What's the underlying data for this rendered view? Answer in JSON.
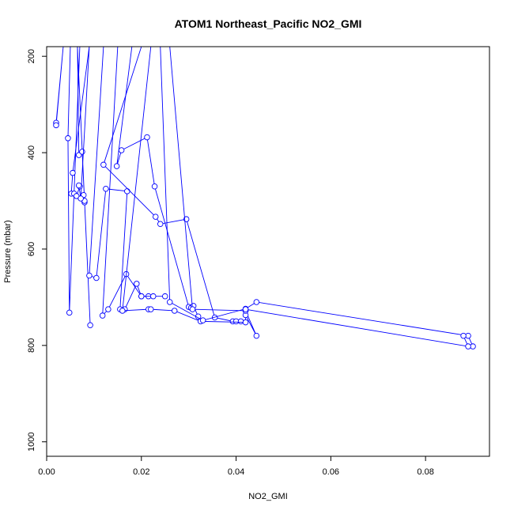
{
  "chart_data": {
    "type": "line",
    "title": "ATOM1 Northeast_Pacific NO2_GMI",
    "xlabel": "NO2_GMI",
    "ylabel": "Pressure (mbar)",
    "xlim": [
      0.0,
      0.0935
    ],
    "ylim": [
      1030,
      180
    ],
    "x_ticks": [
      0.0,
      0.02,
      0.04,
      0.06,
      0.08
    ],
    "x_tick_labels": [
      "0.00",
      "0.02",
      "0.04",
      "0.06",
      "0.08"
    ],
    "y_ticks": [
      200,
      400,
      600,
      800,
      1000
    ],
    "y_tick_labels": [
      "200",
      "400",
      "600",
      "800",
      "1000"
    ],
    "grid": false,
    "legend": "none",
    "series_color": "#0000ff",
    "series": [
      {
        "x": [
          0.0035,
          0.002,
          0.002,
          0.0035
        ],
        "y": [
          180,
          338,
          343,
          180
        ]
      },
      {
        "x": [
          0.005,
          0.0045,
          0.0048,
          0.007
        ],
        "y": [
          180,
          370,
          732,
          180
        ]
      },
      {
        "x": [
          0.0065,
          0.0068,
          0.0075,
          0.008,
          0.0078,
          0.008,
          0.0092,
          0.0065
        ],
        "y": [
          180,
          405,
          398,
          503,
          488,
          500,
          758,
          180
        ]
      },
      {
        "x": [
          0.009,
          0.0055,
          0.0052,
          0.0058,
          0.0063,
          0.007,
          0.0068,
          0.0072,
          0.009
        ],
        "y": [
          180,
          442,
          485,
          485,
          490,
          470,
          468,
          495,
          180
        ]
      },
      {
        "x": [
          0.012,
          0.009,
          0.0105,
          0.0125,
          0.017,
          0.0155,
          0.0165,
          0.019,
          0.02,
          0.0215
        ],
        "y": [
          180,
          655,
          660,
          475,
          480,
          725,
          725,
          672,
          698,
          698
        ]
      },
      {
        "x": [
          0.015,
          0.0118,
          0.013,
          0.0168,
          0.02,
          0.0225,
          0.025
        ],
        "y": [
          180,
          738,
          725,
          652,
          698,
          698,
          698
        ]
      },
      {
        "x": [
          0.018,
          0.0148,
          0.0158,
          0.0212,
          0.0228,
          0.03,
          0.0305,
          0.031,
          0.032
        ],
        "y": [
          180,
          428,
          395,
          368,
          470,
          720,
          722,
          718,
          740
        ]
      },
      {
        "x": [
          0.02,
          0.012,
          0.023,
          0.024,
          0.0295,
          0.0355,
          0.0393,
          0.04,
          0.041
        ],
        "y": [
          180,
          425,
          533,
          548,
          538,
          742,
          750,
          750,
          750
        ]
      },
      {
        "x": [
          0.022,
          0.016,
          0.0215,
          0.022,
          0.027,
          0.0325,
          0.042,
          0.042,
          0.0443,
          0.042
        ],
        "y": [
          180,
          728,
          725,
          725,
          728,
          750,
          752,
          728,
          780,
          737
        ]
      },
      {
        "x": [
          0.024,
          0.026,
          0.033,
          0.042,
          0.0443,
          0.089,
          0.09
        ],
        "y": [
          180,
          710,
          748,
          724,
          710,
          780,
          802
        ]
      },
      {
        "x": [
          0.026,
          0.0308,
          0.042,
          0.042,
          0.089,
          0.088
        ],
        "y": [
          180,
          725,
          728,
          725,
          802,
          780
        ]
      }
    ]
  }
}
